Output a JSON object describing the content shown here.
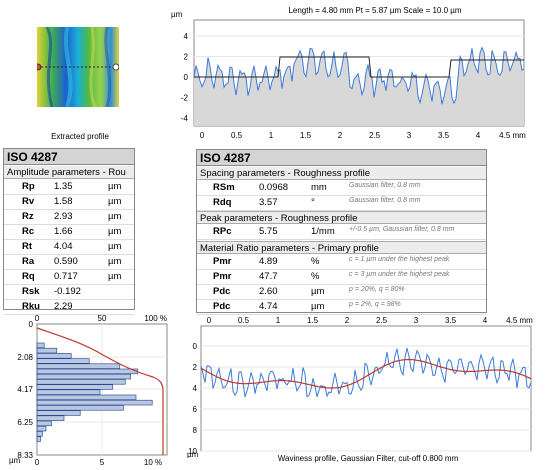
{
  "colors": {
    "profile_blue": "#3d7bd9",
    "fill_gray": "#d8d8d8",
    "red_curve": "#c0392b",
    "hist_fill": "#b8c8e0",
    "hist_stroke": "#1a3a8a"
  },
  "top_plot": {
    "header": "Length = 4.80 mm  Pt = 5.87 µm  Scale = 10.0 µm",
    "y_unit": "µm",
    "y_ticks": [
      "4",
      "2",
      "0",
      "-2",
      "-4"
    ],
    "x_ticks": [
      "0",
      "0.5",
      "1",
      "1.5",
      "2",
      "2.5",
      "3",
      "3.5",
      "4",
      "4.5 mm"
    ]
  },
  "thumbnail": {
    "caption": "Extracted profile"
  },
  "amplitude": {
    "title": "ISO 4287",
    "section": "Amplitude parameters - Rou",
    "rows": [
      {
        "name": "Rp",
        "value": "1.35",
        "unit": "µm"
      },
      {
        "name": "Rv",
        "value": "1.58",
        "unit": "µm"
      },
      {
        "name": "Rz",
        "value": "2.93",
        "unit": "µm"
      },
      {
        "name": "Rc",
        "value": "1.66",
        "unit": "µm"
      },
      {
        "name": "Rt",
        "value": "4.04",
        "unit": "µm"
      },
      {
        "name": "Ra",
        "value": "0.590",
        "unit": "µm"
      },
      {
        "name": "Rq",
        "value": "0.717",
        "unit": "µm"
      },
      {
        "name": "Rsk",
        "value": "-0.192",
        "unit": ""
      },
      {
        "name": "Rku",
        "value": "2.29",
        "unit": ""
      }
    ]
  },
  "spacing": {
    "title": "ISO 4287",
    "section1": "Spacing parameters - Roughness profile",
    "rows1": [
      {
        "name": "RSm",
        "value": "0.0968",
        "unit": "mm",
        "note": "Gaussian filter, 0.8 mm"
      },
      {
        "name": "Rdq",
        "value": "3.57",
        "unit": "°",
        "note": "Gaussian filter, 0.8 mm"
      }
    ],
    "section2": "Peak parameters - Roughness profile",
    "rows2": [
      {
        "name": "RPc",
        "value": "5.75",
        "unit": "1/mm",
        "note": "+/-0.5 µm, Gaussian filter, 0.8 mm"
      }
    ],
    "section3": "Material Ratio parameters - Primary profile",
    "rows3": [
      {
        "name": "Pmr",
        "value": "4.89",
        "unit": "%",
        "note": "c = 1 µm under the highest peak"
      },
      {
        "name": "Pmr",
        "value": "47.7",
        "unit": "%",
        "note": "c = 3 µm under the highest peak"
      },
      {
        "name": "Pdc",
        "value": "2.60",
        "unit": "µm",
        "note": "p = 20%, q = 80%"
      },
      {
        "name": "Pdc",
        "value": "4.74",
        "unit": "µm",
        "note": "p = 2%, q = 98%"
      }
    ]
  },
  "histogram": {
    "x_ticks": [
      "0",
      "50",
      "100 %"
    ],
    "x_ticks_bottom": [
      "0",
      "5",
      "10 %"
    ],
    "y_ticks": [
      "0",
      "2.08",
      "4.17",
      "6.25",
      "8.33"
    ],
    "y_unit": "µm"
  },
  "waviness": {
    "x_ticks": [
      "0",
      "0.5",
      "1",
      "1.5",
      "2",
      "2.5",
      "3",
      "3.5",
      "4",
      "4.5 mm"
    ],
    "y_ticks": [
      "0",
      "2",
      "4",
      "6",
      "8",
      "10"
    ],
    "y_unit": "µm",
    "caption": "Waviness profile, Gaussian Filter, cut-off 0.800 mm"
  }
}
